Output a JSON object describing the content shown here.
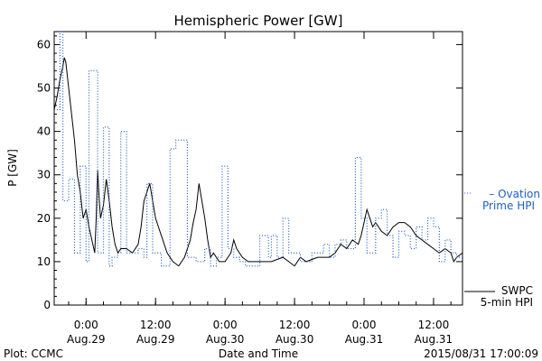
{
  "chart_data": {
    "type": "line",
    "title": "Hemispheric Power [GW]",
    "xlabel": "Date and Time",
    "ylabel": "P [GW]",
    "xlim": [
      "2015-08-28T18:30",
      "2015-08-31T17:00"
    ],
    "ylim": [
      0,
      63
    ],
    "yticks": [
      0,
      10,
      20,
      30,
      40,
      50,
      60
    ],
    "xticks": [
      {
        "t": "2015-08-29T00:00",
        "time": "0:00",
        "date": "Aug.29"
      },
      {
        "t": "2015-08-29T12:00",
        "time": "12:00",
        "date": "Aug.29"
      },
      {
        "t": "2015-08-30T00:00",
        "time": "0:00",
        "date": "Aug.30"
      },
      {
        "t": "2015-08-30T12:00",
        "time": "12:00",
        "date": "Aug.30"
      },
      {
        "t": "2015-08-31T00:00",
        "time": "0:00",
        "date": "Aug.31"
      },
      {
        "t": "2015-08-31T12:00",
        "time": "12:00",
        "date": "Aug.31"
      }
    ],
    "grid": false,
    "legend_position": "right",
    "series": [
      {
        "name": "SWPC 5-min HPI",
        "legend_lines": [
          "SWPC",
          "5-min HPI"
        ],
        "style": "solid",
        "color": "#000000",
        "points": [
          [
            "2015-08-28T18:30",
            45
          ],
          [
            "2015-08-28T19:00",
            48
          ],
          [
            "2015-08-28T19:30",
            52
          ],
          [
            "2015-08-28T20:00",
            55
          ],
          [
            "2015-08-28T20:15",
            57
          ],
          [
            "2015-08-28T20:30",
            56
          ],
          [
            "2015-08-28T21:00",
            50
          ],
          [
            "2015-08-28T21:30",
            44
          ],
          [
            "2015-08-28T22:00",
            38
          ],
          [
            "2015-08-28T22:30",
            30
          ],
          [
            "2015-08-28T23:00",
            26
          ],
          [
            "2015-08-28T23:30",
            20
          ],
          [
            "2015-08-29T00:00",
            22
          ],
          [
            "2015-08-29T00:30",
            18
          ],
          [
            "2015-08-29T01:00",
            15
          ],
          [
            "2015-08-29T01:30",
            12
          ],
          [
            "2015-08-29T01:45",
            20
          ],
          [
            "2015-08-29T02:00",
            31
          ],
          [
            "2015-08-29T02:15",
            25
          ],
          [
            "2015-08-29T02:30",
            20
          ],
          [
            "2015-08-29T03:00",
            23
          ],
          [
            "2015-08-29T03:30",
            29
          ],
          [
            "2015-08-29T04:00",
            24
          ],
          [
            "2015-08-29T04:30",
            18
          ],
          [
            "2015-08-29T05:00",
            14
          ],
          [
            "2015-08-29T05:30",
            12
          ],
          [
            "2015-08-29T06:00",
            13
          ],
          [
            "2015-08-29T07:00",
            13
          ],
          [
            "2015-08-29T08:00",
            12
          ],
          [
            "2015-08-29T09:00",
            14
          ],
          [
            "2015-08-29T09:30",
            18
          ],
          [
            "2015-08-29T10:00",
            24
          ],
          [
            "2015-08-29T10:30",
            26
          ],
          [
            "2015-08-29T11:00",
            28
          ],
          [
            "2015-08-29T11:30",
            24
          ],
          [
            "2015-08-29T12:00",
            20
          ],
          [
            "2015-08-29T13:00",
            16
          ],
          [
            "2015-08-29T14:00",
            12
          ],
          [
            "2015-08-29T15:00",
            10
          ],
          [
            "2015-08-29T16:00",
            9
          ],
          [
            "2015-08-29T17:00",
            11
          ],
          [
            "2015-08-29T18:00",
            15
          ],
          [
            "2015-08-29T18:30",
            19
          ],
          [
            "2015-08-29T19:00",
            22
          ],
          [
            "2015-08-29T19:30",
            28
          ],
          [
            "2015-08-29T20:00",
            24
          ],
          [
            "2015-08-29T20:30",
            20
          ],
          [
            "2015-08-29T21:00",
            15
          ],
          [
            "2015-08-29T21:30",
            11
          ],
          [
            "2015-08-29T22:00",
            12
          ],
          [
            "2015-08-29T23:00",
            10
          ],
          [
            "2015-08-30T00:00",
            10
          ],
          [
            "2015-08-30T01:00",
            12
          ],
          [
            "2015-08-30T01:30",
            15
          ],
          [
            "2015-08-30T02:00",
            13
          ],
          [
            "2015-08-30T03:00",
            11
          ],
          [
            "2015-08-30T04:00",
            10
          ],
          [
            "2015-08-30T06:00",
            10
          ],
          [
            "2015-08-30T08:00",
            10
          ],
          [
            "2015-08-30T10:00",
            11
          ],
          [
            "2015-08-30T12:00",
            9
          ],
          [
            "2015-08-30T13:00",
            11
          ],
          [
            "2015-08-30T14:00",
            10
          ],
          [
            "2015-08-30T16:00",
            11
          ],
          [
            "2015-08-30T18:00",
            11
          ],
          [
            "2015-08-30T19:00",
            12
          ],
          [
            "2015-08-30T20:00",
            14
          ],
          [
            "2015-08-30T21:00",
            13
          ],
          [
            "2015-08-30T22:00",
            15
          ],
          [
            "2015-08-30T23:00",
            14
          ],
          [
            "2015-08-30T23:30",
            16
          ],
          [
            "2015-08-31T00:00",
            19
          ],
          [
            "2015-08-31T00:30",
            22
          ],
          [
            "2015-08-31T01:00",
            20
          ],
          [
            "2015-08-31T01:30",
            18
          ],
          [
            "2015-08-31T02:00",
            19
          ],
          [
            "2015-08-31T03:00",
            17
          ],
          [
            "2015-08-31T04:00",
            16
          ],
          [
            "2015-08-31T05:00",
            18
          ],
          [
            "2015-08-31T06:00",
            19
          ],
          [
            "2015-08-31T07:00",
            19
          ],
          [
            "2015-08-31T08:00",
            18
          ],
          [
            "2015-08-31T09:00",
            16
          ],
          [
            "2015-08-31T10:00",
            15
          ],
          [
            "2015-08-31T11:00",
            14
          ],
          [
            "2015-08-31T12:00",
            13
          ],
          [
            "2015-08-31T13:00",
            12
          ],
          [
            "2015-08-31T14:00",
            13
          ],
          [
            "2015-08-31T15:00",
            12
          ],
          [
            "2015-08-31T15:30",
            10
          ],
          [
            "2015-08-31T16:00",
            11
          ],
          [
            "2015-08-31T17:00",
            12
          ]
        ]
      },
      {
        "name": "Ovation Prime HPI",
        "legend_lines": [
          "– Ovation",
          "Prime HPI"
        ],
        "style": "dotted-step",
        "color": "#1f5fbf",
        "points": [
          [
            "2015-08-28T18:30",
            45
          ],
          [
            "2015-08-28T19:30",
            63
          ],
          [
            "2015-08-28T20:00",
            24
          ],
          [
            "2015-08-28T21:00",
            29
          ],
          [
            "2015-08-28T22:00",
            12
          ],
          [
            "2015-08-28T23:00",
            32
          ],
          [
            "2015-08-29T00:00",
            10
          ],
          [
            "2015-08-29T00:30",
            54
          ],
          [
            "2015-08-29T02:00",
            12
          ],
          [
            "2015-08-29T03:00",
            41
          ],
          [
            "2015-08-29T04:00",
            9
          ],
          [
            "2015-08-29T04:30",
            11
          ],
          [
            "2015-08-29T05:30",
            12
          ],
          [
            "2015-08-29T06:00",
            40
          ],
          [
            "2015-08-29T07:00",
            12
          ],
          [
            "2015-08-29T08:00",
            12
          ],
          [
            "2015-08-29T09:00",
            13
          ],
          [
            "2015-08-29T10:00",
            11
          ],
          [
            "2015-08-29T10:30",
            28
          ],
          [
            "2015-08-29T11:30",
            12
          ],
          [
            "2015-08-29T13:00",
            9
          ],
          [
            "2015-08-29T14:30",
            36
          ],
          [
            "2015-08-29T15:30",
            38
          ],
          [
            "2015-08-29T17:30",
            11
          ],
          [
            "2015-08-29T19:00",
            10
          ],
          [
            "2015-08-29T20:30",
            13
          ],
          [
            "2015-08-29T21:30",
            9
          ],
          [
            "2015-08-29T22:30",
            11
          ],
          [
            "2015-08-29T23:30",
            32
          ],
          [
            "2015-08-30T00:30",
            13
          ],
          [
            "2015-08-30T01:30",
            11
          ],
          [
            "2015-08-30T02:30",
            10
          ],
          [
            "2015-08-30T03:30",
            9
          ],
          [
            "2015-08-30T06:00",
            16
          ],
          [
            "2015-08-30T07:30",
            11
          ],
          [
            "2015-08-30T08:00",
            16
          ],
          [
            "2015-08-30T09:00",
            11
          ],
          [
            "2015-08-30T10:00",
            20
          ],
          [
            "2015-08-30T11:00",
            12
          ],
          [
            "2015-08-30T13:00",
            10
          ],
          [
            "2015-08-30T15:00",
            12
          ],
          [
            "2015-08-30T17:00",
            14
          ],
          [
            "2015-08-30T18:00",
            11
          ],
          [
            "2015-08-30T19:00",
            14
          ],
          [
            "2015-08-30T20:00",
            15
          ],
          [
            "2015-08-30T21:00",
            13
          ],
          [
            "2015-08-30T22:30",
            34
          ],
          [
            "2015-08-30T23:30",
            20
          ],
          [
            "2015-08-31T00:30",
            12
          ],
          [
            "2015-08-31T02:00",
            20
          ],
          [
            "2015-08-31T03:00",
            22
          ],
          [
            "2015-08-31T04:00",
            16
          ],
          [
            "2015-08-31T05:00",
            11
          ],
          [
            "2015-08-31T06:00",
            17
          ],
          [
            "2015-08-31T07:00",
            16
          ],
          [
            "2015-08-31T08:00",
            13
          ],
          [
            "2015-08-31T09:00",
            18
          ],
          [
            "2015-08-31T10:00",
            15
          ],
          [
            "2015-08-31T11:00",
            20
          ],
          [
            "2015-08-31T12:00",
            18
          ],
          [
            "2015-08-31T13:00",
            10
          ],
          [
            "2015-08-31T14:00",
            15
          ],
          [
            "2015-08-31T15:00",
            12
          ],
          [
            "2015-08-31T16:00",
            11
          ],
          [
            "2015-08-31T17:00",
            11
          ]
        ]
      }
    ]
  },
  "footer": {
    "left": "Plot: CCMC",
    "right": "2015/08/31 17:00:09"
  }
}
